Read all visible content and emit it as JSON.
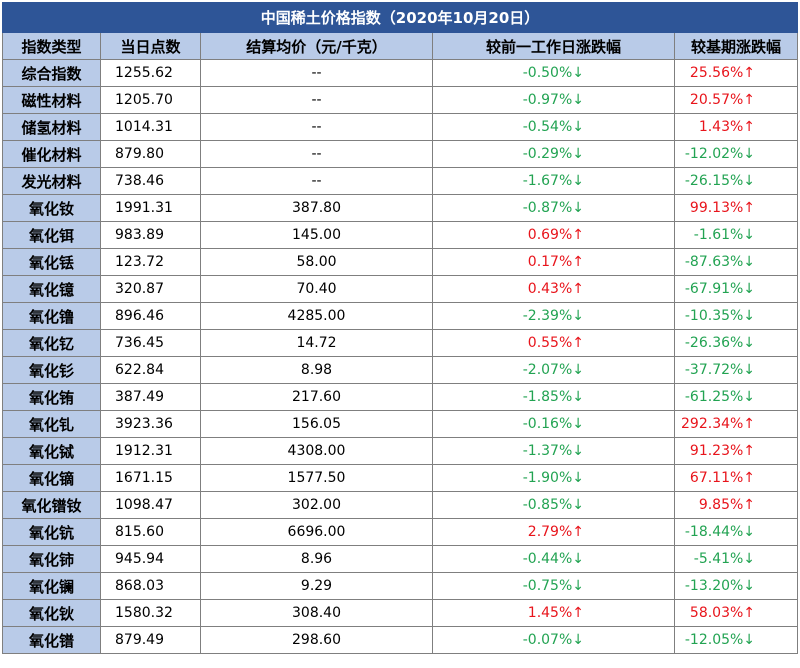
{
  "title": "中国稀土价格指数（2020年10月20日）",
  "colors": {
    "header_bg": "#2e5597",
    "label_bg": "#b9cbe8",
    "up": "#e8141b",
    "down": "#22a352"
  },
  "columns": [
    "指数类型",
    "当日点数",
    "结算均价（元/千克）",
    "较前一工作日涨跌幅",
    "较基期涨跌幅"
  ],
  "rows": [
    {
      "name": "综合指数",
      "points": "1255.62",
      "price": "--",
      "change": "-0.50%↓",
      "change_dir": "down",
      "base": "25.56%↑",
      "base_dir": "up"
    },
    {
      "name": "磁性材料",
      "points": "1205.70",
      "price": "--",
      "change": "-0.97%↓",
      "change_dir": "down",
      "base": "20.57%↑",
      "base_dir": "up"
    },
    {
      "name": "储氢材料",
      "points": "1014.31",
      "price": "--",
      "change": "-0.54%↓",
      "change_dir": "down",
      "base": "1.43%↑",
      "base_dir": "up"
    },
    {
      "name": "催化材料",
      "points": "879.80",
      "price": "--",
      "change": "-0.29%↓",
      "change_dir": "down",
      "base": "-12.02%↓",
      "base_dir": "down"
    },
    {
      "name": "发光材料",
      "points": "738.46",
      "price": "--",
      "change": "-1.67%↓",
      "change_dir": "down",
      "base": "-26.15%↓",
      "base_dir": "down"
    },
    {
      "name": "氧化钕",
      "points": "1991.31",
      "price": "387.80",
      "change": "-0.87%↓",
      "change_dir": "down",
      "base": "99.13%↑",
      "base_dir": "up"
    },
    {
      "name": "氧化铒",
      "points": "983.89",
      "price": "145.00",
      "change": "0.69%↑",
      "change_dir": "up",
      "base": "-1.61%↓",
      "base_dir": "down"
    },
    {
      "name": "氧化铥",
      "points": "123.72",
      "price": "58.00",
      "change": "0.17%↑",
      "change_dir": "up",
      "base": "-87.63%↓",
      "base_dir": "down"
    },
    {
      "name": "氧化镱",
      "points": "320.87",
      "price": "70.40",
      "change": "0.43%↑",
      "change_dir": "up",
      "base": "-67.91%↓",
      "base_dir": "down"
    },
    {
      "name": "氧化镥",
      "points": "896.46",
      "price": "4285.00",
      "change": "-2.39%↓",
      "change_dir": "down",
      "base": "-10.35%↓",
      "base_dir": "down"
    },
    {
      "name": "氧化钇",
      "points": "736.45",
      "price": "14.72",
      "change": "0.55%↑",
      "change_dir": "up",
      "base": "-26.36%↓",
      "base_dir": "down"
    },
    {
      "name": "氧化钐",
      "points": "622.84",
      "price": "8.98",
      "change": "-2.07%↓",
      "change_dir": "down",
      "base": "-37.72%↓",
      "base_dir": "down"
    },
    {
      "name": "氧化铕",
      "points": "387.49",
      "price": "217.60",
      "change": "-1.85%↓",
      "change_dir": "down",
      "base": "-61.25%↓",
      "base_dir": "down"
    },
    {
      "name": "氧化钆",
      "points": "3923.36",
      "price": "156.05",
      "change": "-0.16%↓",
      "change_dir": "down",
      "base": "292.34%↑",
      "base_dir": "up"
    },
    {
      "name": "氧化铽",
      "points": "1912.31",
      "price": "4308.00",
      "change": "-1.37%↓",
      "change_dir": "down",
      "base": "91.23%↑",
      "base_dir": "up"
    },
    {
      "name": "氧化镝",
      "points": "1671.15",
      "price": "1577.50",
      "change": "-1.90%↓",
      "change_dir": "down",
      "base": "67.11%↑",
      "base_dir": "up"
    },
    {
      "name": "氧化镨钕",
      "points": "1098.47",
      "price": "302.00",
      "change": "-0.85%↓",
      "change_dir": "down",
      "base": "9.85%↑",
      "base_dir": "up"
    },
    {
      "name": "氧化钪",
      "points": "815.60",
      "price": "6696.00",
      "change": "2.79%↑",
      "change_dir": "up",
      "base": "-18.44%↓",
      "base_dir": "down"
    },
    {
      "name": "氧化铈",
      "points": "945.94",
      "price": "8.96",
      "change": "-0.44%↓",
      "change_dir": "down",
      "base": "-5.41%↓",
      "base_dir": "down"
    },
    {
      "name": "氧化镧",
      "points": "868.03",
      "price": "9.29",
      "change": "-0.75%↓",
      "change_dir": "down",
      "base": "-13.20%↓",
      "base_dir": "down"
    },
    {
      "name": "氧化钬",
      "points": "1580.32",
      "price": "308.40",
      "change": "1.45%↑",
      "change_dir": "up",
      "base": "58.03%↑",
      "base_dir": "up"
    },
    {
      "name": "氧化镨",
      "points": "879.49",
      "price": "298.60",
      "change": "-0.07%↓",
      "change_dir": "down",
      "base": "-12.05%↓",
      "base_dir": "down"
    }
  ]
}
